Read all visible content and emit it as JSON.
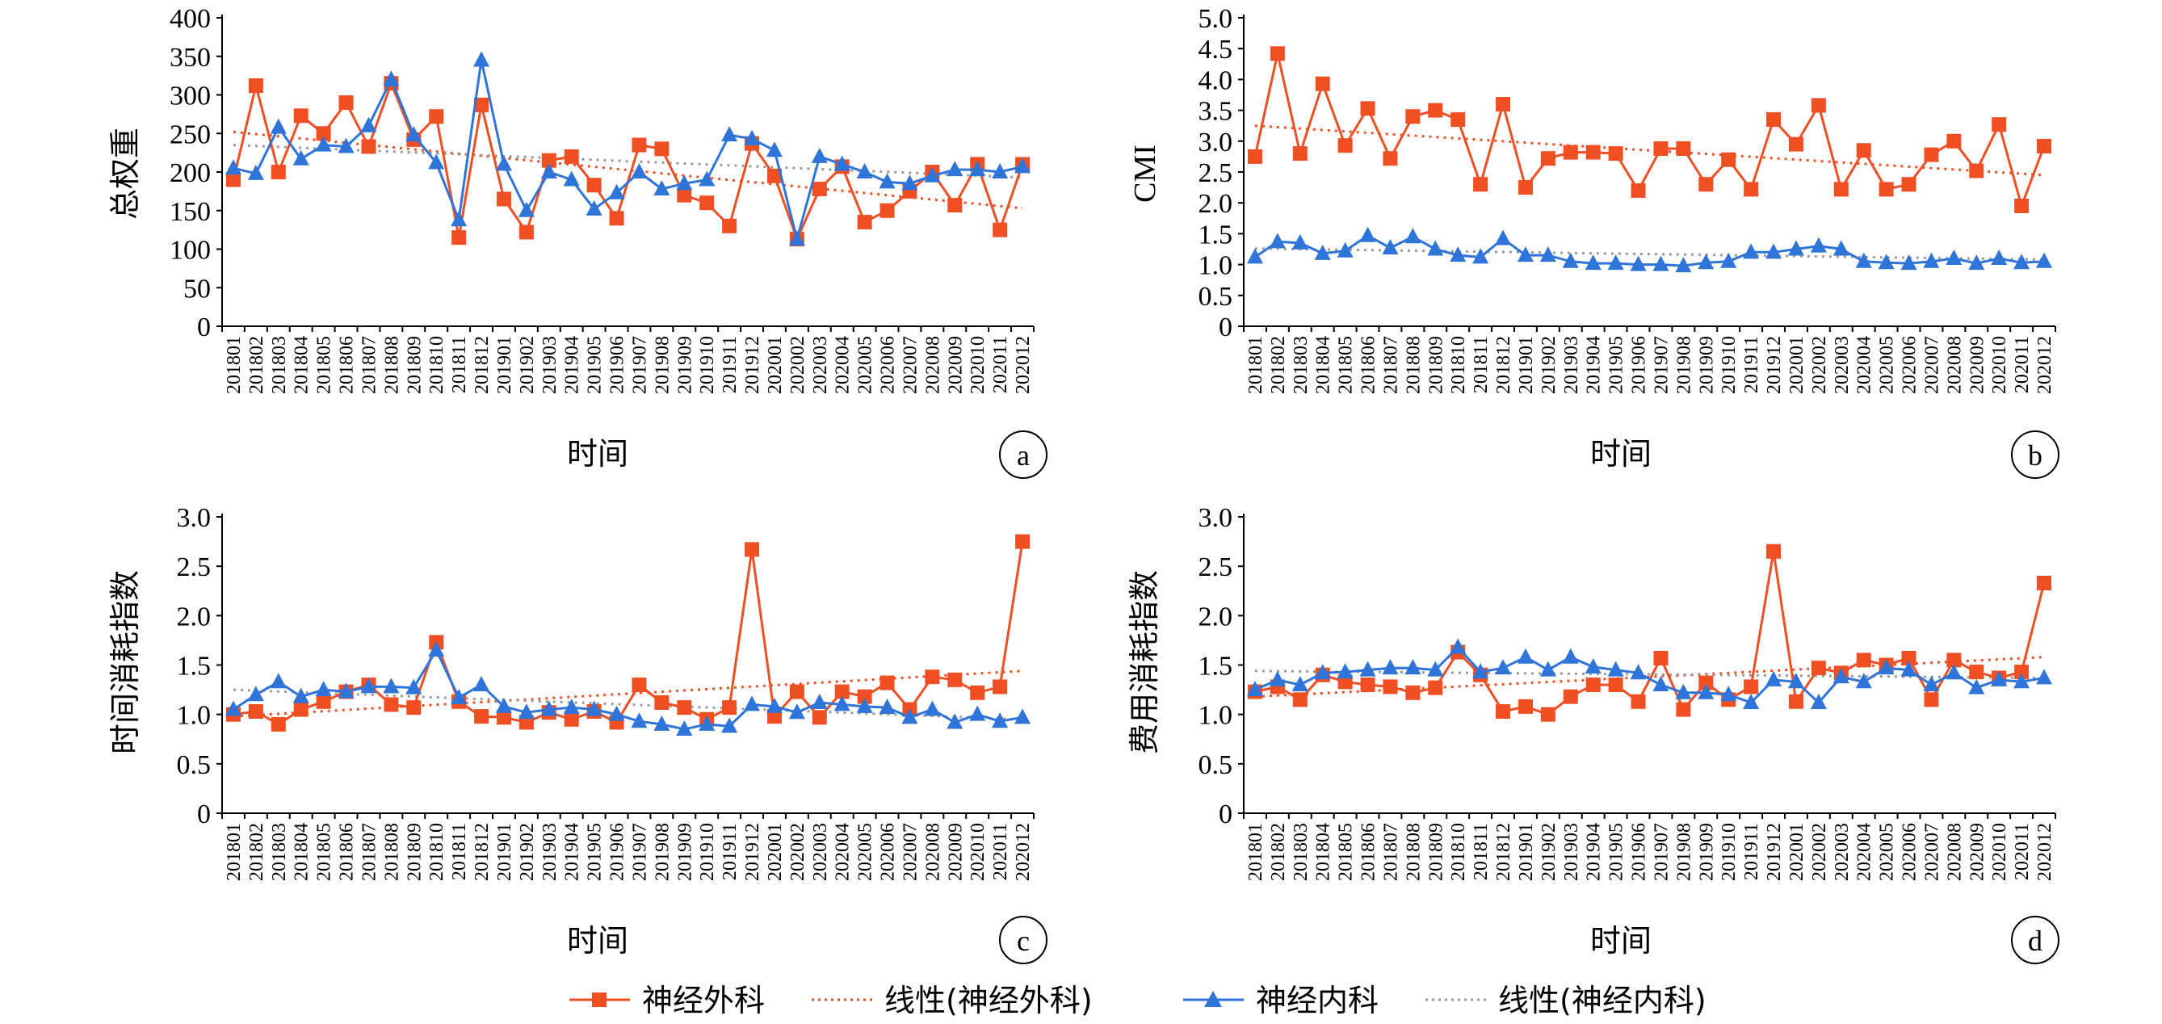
{
  "x_categories": [
    "201801",
    "201802",
    "201803",
    "201804",
    "201805",
    "201806",
    "201807",
    "201808",
    "201809",
    "201810",
    "201811",
    "201812",
    "201901",
    "201902",
    "201903",
    "201904",
    "201905",
    "201906",
    "201907",
    "201908",
    "201909",
    "201910",
    "201911",
    "201912",
    "202001",
    "202002",
    "202003",
    "202004",
    "202005",
    "202006",
    "202007",
    "202008",
    "202009",
    "202010",
    "202011",
    "202012"
  ],
  "legend": {
    "neuro_surg": "神经外科",
    "neuro_surg_trend": "线性(神经外科)",
    "neuro_med": "神经内科",
    "neuro_med_trend": "线性(神经内科)"
  },
  "colors": {
    "surgery": "#f04e23",
    "medicine": "#2f74d9",
    "trend_surgery": "#f04e23",
    "trend_medicine": "#9a9a9a"
  },
  "chart_data": [
    {
      "type": "line",
      "panel": "a",
      "xlabel": "时间",
      "ylabel": "总权重",
      "ylim": [
        0,
        400
      ],
      "yticks": [
        "0",
        "50",
        "100",
        "150",
        "200",
        "250",
        "300",
        "350",
        "400"
      ],
      "series": [
        {
          "name": "神经外科",
          "marker": "square",
          "values": [
            190,
            312,
            200,
            273,
            250,
            290,
            233,
            315,
            242,
            272,
            115,
            287,
            165,
            122,
            215,
            220,
            183,
            140,
            235,
            230,
            170,
            160,
            130,
            237,
            195,
            113,
            178,
            207,
            135,
            150,
            175,
            200,
            157,
            210,
            125,
            210
          ]
        },
        {
          "name": "神经内科",
          "marker": "triangle",
          "values": [
            205,
            198,
            258,
            217,
            235,
            233,
            260,
            320,
            248,
            212,
            138,
            345,
            210,
            150,
            200,
            190,
            152,
            173,
            200,
            178,
            185,
            190,
            248,
            243,
            228,
            113,
            220,
            210,
            200,
            187,
            185,
            195,
            203,
            203,
            200,
            207
          ]
        }
      ],
      "trend": {
        "surgery": [
          252,
          153
        ],
        "medicine": [
          235,
          193
        ]
      }
    },
    {
      "type": "line",
      "panel": "b",
      "xlabel": "时间",
      "ylabel": "CMI",
      "ylim": [
        0,
        5
      ],
      "yticks": [
        "0",
        "0.5",
        "1.0",
        "1.5",
        "2.0",
        "2.5",
        "3.0",
        "3.5",
        "4.0",
        "4.5",
        "5.0"
      ],
      "series": [
        {
          "name": "神经外科",
          "marker": "square",
          "values": [
            2.75,
            4.42,
            2.8,
            3.93,
            2.93,
            3.53,
            2.72,
            3.4,
            3.5,
            3.35,
            2.3,
            3.6,
            2.25,
            2.72,
            2.82,
            2.82,
            2.8,
            2.2,
            2.88,
            2.88,
            2.3,
            2.7,
            2.22,
            3.35,
            2.95,
            3.58,
            2.22,
            2.85,
            2.22,
            2.3,
            2.78,
            3.0,
            2.52,
            3.27,
            1.95,
            2.92
          ]
        },
        {
          "name": "神经内科",
          "marker": "triangle",
          "values": [
            1.12,
            1.37,
            1.35,
            1.18,
            1.22,
            1.47,
            1.27,
            1.45,
            1.25,
            1.15,
            1.12,
            1.42,
            1.15,
            1.15,
            1.05,
            1.02,
            1.02,
            1.0,
            1.0,
            0.98,
            1.03,
            1.05,
            1.2,
            1.2,
            1.25,
            1.3,
            1.25,
            1.05,
            1.03,
            1.02,
            1.05,
            1.1,
            1.02,
            1.1,
            1.03,
            1.05
          ]
        }
      ],
      "trend": {
        "surgery": [
          3.25,
          2.45
        ],
        "medicine": [
          1.26,
          1.08
        ]
      }
    },
    {
      "type": "line",
      "panel": "c",
      "xlabel": "时间",
      "ylabel": "时间消耗指数",
      "ylim": [
        0,
        3
      ],
      "yticks": [
        "0",
        "0.5",
        "1.0",
        "1.5",
        "2.0",
        "2.5",
        "3.0"
      ],
      "series": [
        {
          "name": "神经外科",
          "marker": "square",
          "values": [
            1.0,
            1.03,
            0.9,
            1.05,
            1.13,
            1.23,
            1.3,
            1.1,
            1.07,
            1.73,
            1.13,
            0.98,
            0.97,
            0.92,
            1.02,
            0.95,
            1.03,
            0.92,
            1.3,
            1.12,
            1.07,
            0.95,
            1.07,
            2.67,
            0.98,
            1.23,
            0.97,
            1.23,
            1.18,
            1.32,
            1.05,
            1.38,
            1.35,
            1.22,
            1.28,
            2.75
          ]
        },
        {
          "name": "神经内科",
          "marker": "triangle",
          "values": [
            1.05,
            1.2,
            1.33,
            1.18,
            1.25,
            1.23,
            1.28,
            1.28,
            1.27,
            1.65,
            1.17,
            1.3,
            1.08,
            1.02,
            1.05,
            1.07,
            1.05,
            1.0,
            0.93,
            0.9,
            0.85,
            0.9,
            0.88,
            1.1,
            1.08,
            1.02,
            1.12,
            1.1,
            1.08,
            1.07,
            0.97,
            1.05,
            0.92,
            1.0,
            0.93,
            0.97
          ]
        }
      ],
      "trend": {
        "surgery": [
          0.98,
          1.44
        ],
        "medicine": [
          1.25,
          0.95
        ]
      }
    },
    {
      "type": "line",
      "panel": "d",
      "xlabel": "时间",
      "ylabel": "费用消耗指数",
      "ylim": [
        0,
        3
      ],
      "yticks": [
        "0",
        "0.5",
        "1.0",
        "1.5",
        "2.0",
        "2.5",
        "3.0"
      ],
      "series": [
        {
          "name": "神经外科",
          "marker": "square",
          "values": [
            1.23,
            1.28,
            1.15,
            1.4,
            1.33,
            1.3,
            1.28,
            1.22,
            1.27,
            1.63,
            1.4,
            1.03,
            1.08,
            1.0,
            1.18,
            1.3,
            1.3,
            1.13,
            1.57,
            1.05,
            1.32,
            1.15,
            1.28,
            2.65,
            1.13,
            1.47,
            1.42,
            1.55,
            1.5,
            1.57,
            1.15,
            1.55,
            1.43,
            1.37,
            1.43,
            2.33
          ]
        },
        {
          "name": "神经内科",
          "marker": "triangle",
          "values": [
            1.25,
            1.35,
            1.3,
            1.42,
            1.43,
            1.45,
            1.47,
            1.47,
            1.45,
            1.68,
            1.43,
            1.47,
            1.58,
            1.45,
            1.58,
            1.48,
            1.45,
            1.42,
            1.3,
            1.22,
            1.22,
            1.2,
            1.12,
            1.35,
            1.33,
            1.12,
            1.38,
            1.33,
            1.47,
            1.45,
            1.3,
            1.42,
            1.27,
            1.35,
            1.33,
            1.37
          ]
        }
      ],
      "trend": {
        "surgery": [
          1.18,
          1.58
        ],
        "medicine": [
          1.44,
          1.37
        ]
      }
    }
  ]
}
